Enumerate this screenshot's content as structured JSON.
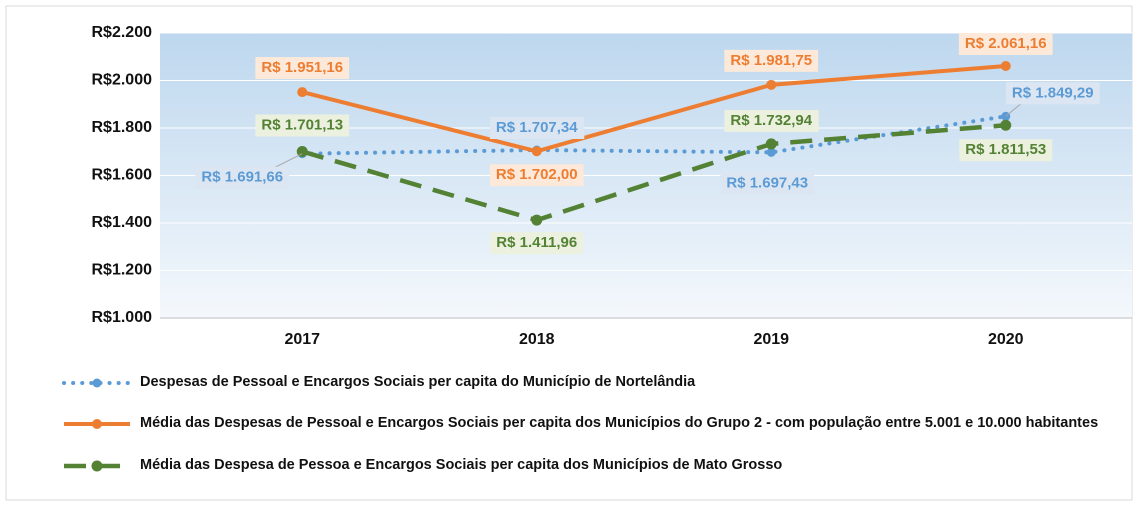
{
  "chart_data": {
    "type": "line",
    "categories": [
      "2017",
      "2018",
      "2019",
      "2020"
    ],
    "ylim": [
      1000,
      2200
    ],
    "yticks": [
      {
        "value": 1000,
        "label": "R$1.000"
      },
      {
        "value": 1200,
        "label": "R$1.200"
      },
      {
        "value": 1400,
        "label": "R$1.400"
      },
      {
        "value": 1600,
        "label": "R$1.600"
      },
      {
        "value": 1800,
        "label": "R$1.800"
      },
      {
        "value": 2000,
        "label": "R$2.000"
      },
      {
        "value": 2200,
        "label": "R$2.200"
      }
    ],
    "grid": true,
    "series": [
      {
        "name": "Despesas de Pessoal e Encargos Sociais  per capita do Município de Nortelândia",
        "color": "#5b9bd5",
        "values": [
          1691.66,
          1707.34,
          1697.43,
          1849.29
        ],
        "value_labels": [
          "R$ 1.691,66",
          "R$ 1.707,34",
          "R$ 1.697,43",
          "R$ 1.849,29"
        ]
      },
      {
        "name": "Média das Despesas de Pessoal e Encargos Sociais  per capita dos Municípios do Grupo 2 - com população entre 5.001 e 10.000 habitantes",
        "color": "#ed7d31",
        "values": [
          1951.16,
          1702.0,
          1981.75,
          2061.16
        ],
        "value_labels": [
          "R$ 1.951,16",
          "R$ 1.702,00",
          "R$ 1.981,75",
          "R$ 2.061,16"
        ]
      },
      {
        "name": "Média das Despesa de Pessoa e Encargos Sociais per capita dos Municípios de Mato Grosso",
        "color": "#548235",
        "values": [
          1701.13,
          1411.96,
          1732.94,
          1811.53
        ],
        "value_labels": [
          "R$ 1.701,13",
          "R$ 1.411,96",
          "R$ 1.732,94",
          "R$ 1.811,53"
        ]
      }
    ]
  }
}
